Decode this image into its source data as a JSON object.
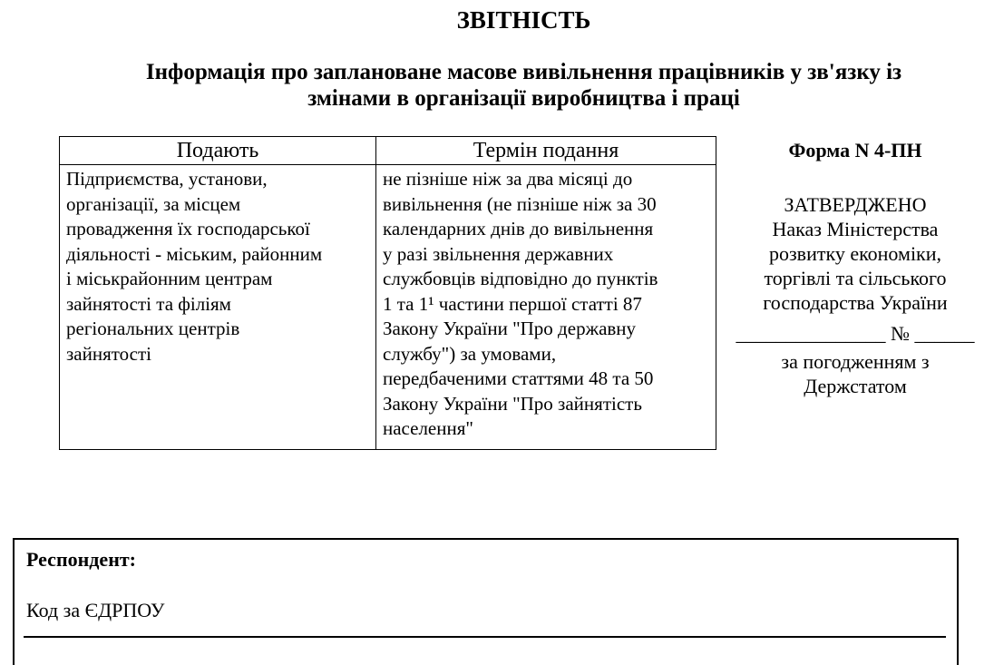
{
  "document": {
    "title": "ЗВІТНІСТЬ",
    "subtitle_line1": "Інформація про заплановане масове вивільнення працівників у зв'язку із",
    "subtitle_line2": "змінами в організації виробництва і праці"
  },
  "table": {
    "headers": [
      "Подають",
      "Термін подання"
    ],
    "podayut_lines": [
      "Підприємства, установи,",
      "організації, за місцем",
      "провадження їх господарської",
      "діяльності - міським, районним",
      "і міськрайонним центрам",
      "зайнятості та філіям",
      "регіональних центрів",
      "зайнятості"
    ],
    "termin_lines": [
      "не пізніше ніж за два місяці до",
      "вивільнення (не пізніше ніж за 30",
      "календарних днів до вивільнення",
      "у разі звільнення державних",
      "службовців відповідно до пунктів",
      "1 та 1¹ частини першої статті 87",
      "Закону України \"Про державну",
      "службу\") за умовами,",
      "передбаченими статтями 48 та 50",
      "Закону України \"Про зайнятість",
      "населення\""
    ]
  },
  "approval": {
    "form_label": "Форма N 4-ПН",
    "approved_label": "ЗАТВЕРДЖЕНО",
    "order_line1": "Наказ Міністерства",
    "order_line2": "розвитку економіки,",
    "order_line3": "торгівлі та сільського",
    "order_line4": "господарства України",
    "number_line": "_______________ № ______",
    "agreement_line1": "за погодженням з",
    "agreement_line2": "Держстатом"
  },
  "respondent": {
    "label": "Респондент:",
    "edrpou_label": "Код за ЄДРПОУ"
  },
  "colors": {
    "text": "#000000",
    "background": "#ffffff",
    "border": "#000000"
  }
}
